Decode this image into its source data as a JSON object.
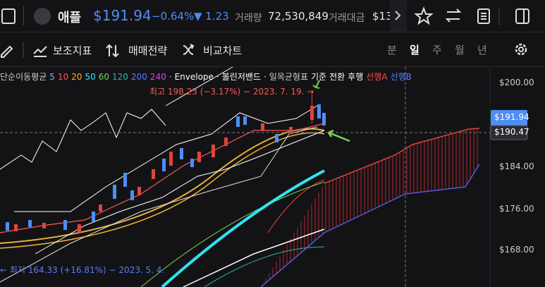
{
  "header": {
    "name": "애플",
    "price": "$191.94",
    "change_pct": "−0.64%",
    "change": "▼ 1.23",
    "volume_label": "거래량",
    "volume": "72,530,849",
    "amount_label": "거래대금",
    "amount": "$13"
  },
  "toolbar": {
    "items": [
      "보조지표",
      "매매전략",
      "비교차트"
    ],
    "periods": [
      "분",
      "일",
      "주",
      "월",
      "년"
    ],
    "active_period": 1
  },
  "legend": [
    {
      "text": "단순이동평균",
      "color": "#cfcfcf"
    },
    {
      "text": "5",
      "color": "#7fb2ff"
    },
    {
      "text": "10",
      "color": "#ff5a4f"
    },
    {
      "text": "20",
      "color": "#ffa733"
    },
    {
      "text": "50",
      "color": "#2fe3f0"
    },
    {
      "text": "60",
      "color": "#7bd35a"
    },
    {
      "text": "120",
      "color": "#2bb5b0"
    },
    {
      "text": "200",
      "color": "#5b7cff"
    },
    {
      "text": "240",
      "color": "#e040e8"
    },
    {
      "text": "·",
      "color": "#cfcfcf"
    },
    {
      "text": "Envelope",
      "color": "#ffffff"
    },
    {
      "text": "·",
      "color": "#cfcfcf"
    },
    {
      "text": "볼린저밴드",
      "color": "#ffffff"
    },
    {
      "text": "·",
      "color": "#cfcfcf"
    },
    {
      "text": "일목균형표",
      "color": "#cfcfcf"
    },
    {
      "text": "기준",
      "color": "#ffffff"
    },
    {
      "text": "전환",
      "color": "#ffffff"
    },
    {
      "text": "후행",
      "color": "#ffffff"
    },
    {
      "text": "선행A",
      "color": "#ff4a4a"
    },
    {
      "text": "선행B",
      "color": "#5b7cff"
    }
  ],
  "annotations": {
    "high": "최고 198.23 (−3.17%) − 2023. 7. 19. →",
    "low": "← 최저 164.33 (+16.81%) − 2023. 5. 4."
  },
  "price_axis": {
    "ticks": [
      "$200.00",
      "$184.00",
      "$176.00",
      "$168.00"
    ],
    "current": "$191.94",
    "crosshair": "$190.47"
  }
}
